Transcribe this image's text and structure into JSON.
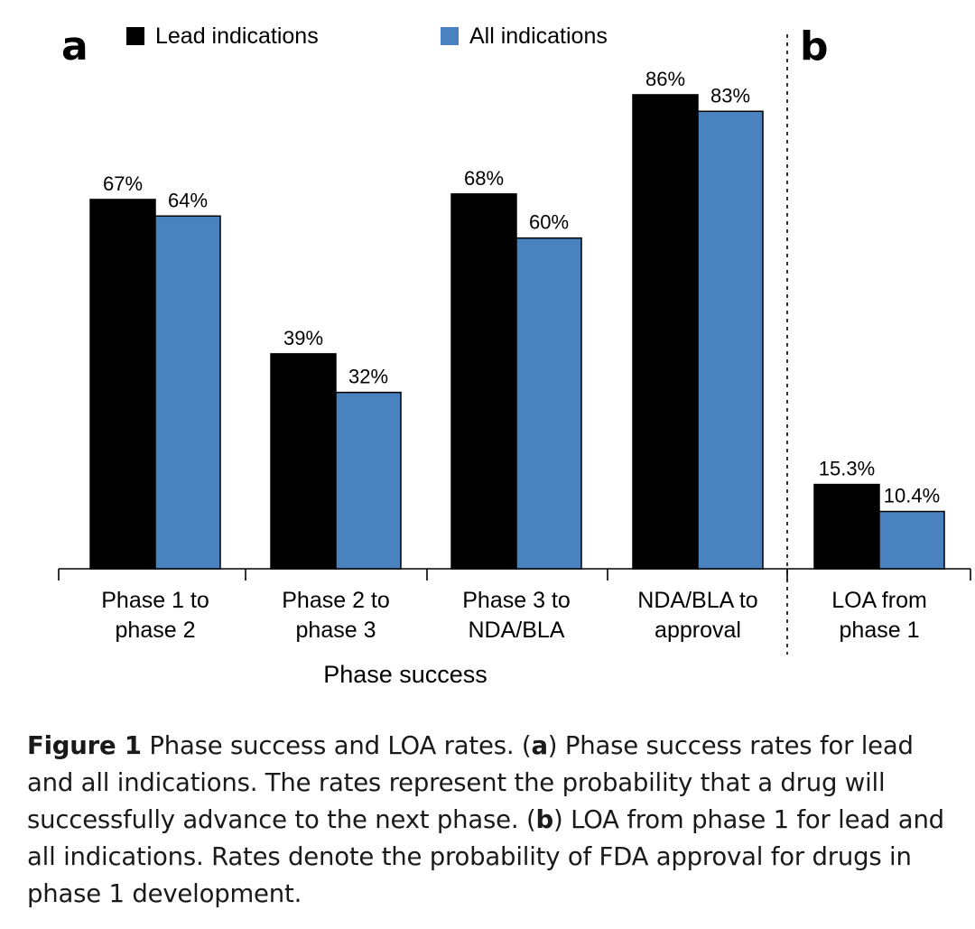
{
  "panels": {
    "a": "a",
    "b": "b"
  },
  "colors": {
    "lead": "#000000",
    "all": "#4a82bf"
  },
  "chart_data": {
    "type": "bar",
    "legend": {
      "placement": "top",
      "entries": [
        "Lead indications",
        "All indications"
      ]
    },
    "ylim": [
      0,
      100
    ],
    "grid": false,
    "panel_a": {
      "categories": [
        [
          "Phase 1 to",
          "phase 2"
        ],
        [
          "Phase 2 to",
          "phase 3"
        ],
        [
          "Phase 3 to",
          "NDA/BLA"
        ],
        [
          "NDA/BLA to",
          "approval"
        ]
      ],
      "xlabel": "Phase success",
      "series": [
        {
          "name": "Lead indications",
          "values": [
            67,
            39,
            68,
            86
          ],
          "labels": [
            "67%",
            "39%",
            "68%",
            "86%"
          ]
        },
        {
          "name": "All indications",
          "values": [
            64,
            32,
            60,
            83
          ],
          "labels": [
            "64%",
            "32%",
            "60%",
            "83%"
          ]
        }
      ]
    },
    "panel_b": {
      "categories": [
        [
          "LOA from",
          "phase 1"
        ]
      ],
      "series": [
        {
          "name": "Lead indications",
          "values": [
            15.3
          ],
          "labels": [
            "15.3%"
          ]
        },
        {
          "name": "All indications",
          "values": [
            10.4
          ],
          "labels": [
            "10.4%"
          ]
        }
      ]
    }
  },
  "caption": {
    "figure": "Figure 1",
    "t1": " Phase success and LOA rates. (",
    "a": "a",
    "t2": ") Phase success rates for lead and all indications. The rates represent the probability that a drug will successfully advance to the next phase. (",
    "b": "b",
    "t3": ") LOA from phase 1 for lead and all indications. Rates denote the probability of FDA approval for drugs in phase 1 development."
  }
}
